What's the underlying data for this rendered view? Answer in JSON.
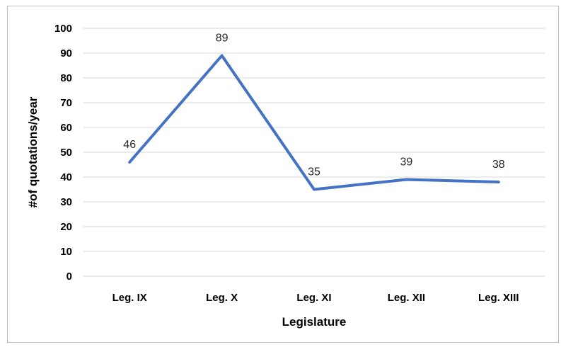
{
  "chart_data": {
    "type": "line",
    "categories": [
      "Leg. IX",
      "Leg. X",
      "Leg. XI",
      "Leg. XII",
      "Leg. XIII"
    ],
    "series": [
      {
        "values": [
          46,
          89,
          35,
          39,
          38
        ],
        "color": "#4472c4"
      }
    ],
    "data_labels": [
      "46",
      "89",
      "35",
      "39",
      "38"
    ],
    "title": "",
    "xlabel": "Legislature",
    "ylabel": "#of quotations/year",
    "ylim": [
      0,
      100
    ],
    "yticks": [
      0,
      10,
      20,
      30,
      40,
      50,
      60,
      70,
      80,
      90,
      100
    ],
    "ytick_labels": [
      "0",
      "10",
      "20",
      "30",
      "40",
      "50",
      "60",
      "70",
      "80",
      "90",
      "100"
    ],
    "grid": true,
    "gridline_color": "#d9d9d9",
    "legend": "none"
  }
}
